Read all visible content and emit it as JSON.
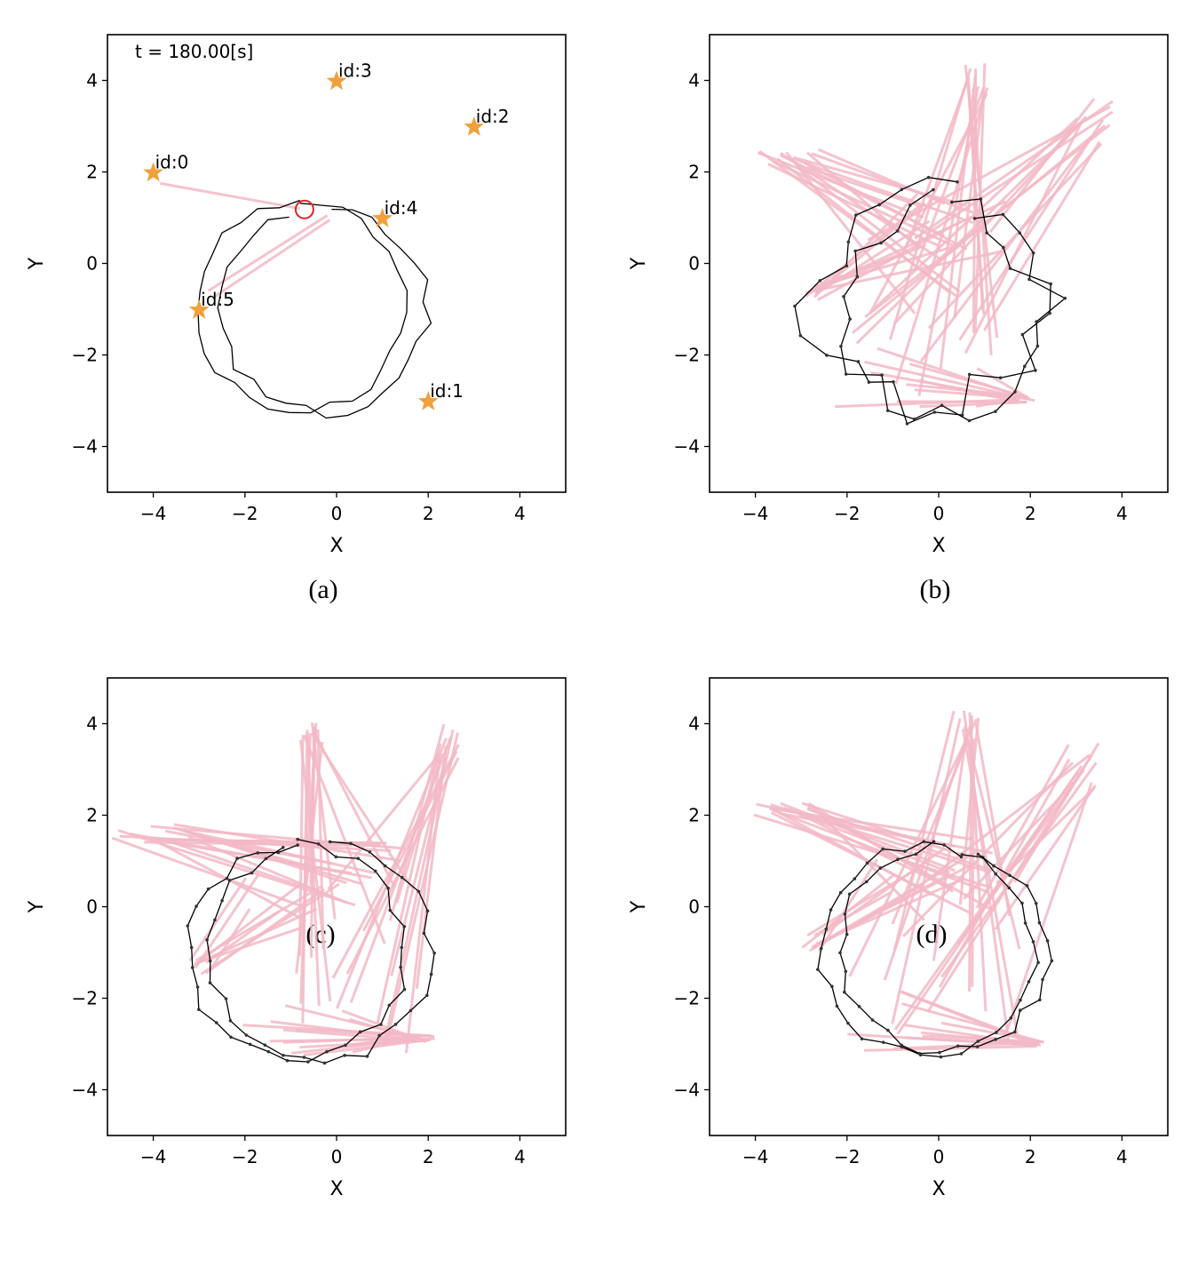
{
  "captions": [
    "(a)",
    "(b)",
    "(c)",
    "(d)"
  ],
  "chart_data": [
    {
      "type": "scatter",
      "panel": "(a)",
      "xlabel": "X",
      "ylabel": "Y",
      "xlim": [
        -5,
        5
      ],
      "ylim": [
        -5,
        5
      ],
      "xticks": [
        -4,
        -2,
        0,
        2,
        4
      ],
      "yticks": [
        -4,
        -2,
        0,
        2,
        4
      ],
      "grid": false,
      "time_text": "t = 180.00[s]",
      "colors": {
        "landmark": "#f0a13c",
        "trajectory": "#000000",
        "observation": "#f2b8c6",
        "robot": "#d62728"
      },
      "landmarks": [
        {
          "id": "id:0",
          "x": -4,
          "y": 2
        },
        {
          "id": "id:1",
          "x": 2,
          "y": -3
        },
        {
          "id": "id:2",
          "x": 3,
          "y": 3
        },
        {
          "id": "id:3",
          "x": 0,
          "y": 4
        },
        {
          "id": "id:4",
          "x": 1,
          "y": 1
        },
        {
          "id": "id:5",
          "x": -3,
          "y": -1
        }
      ],
      "robot": {
        "x": -0.7,
        "y": 1.18
      },
      "trajectories": [
        {
          "cx": -0.8,
          "cy": -0.95,
          "r": 2.28,
          "start_angle": 90,
          "sweep": 360,
          "points": 32,
          "wobble": 0.05,
          "dots": false
        },
        {
          "cx": -0.3,
          "cy": -1.0,
          "r": 2.25,
          "start_angle": 110,
          "sweep": 335,
          "points": 30,
          "wobble": 0.06,
          "dots": false
        }
      ],
      "observations": [
        {
          "x1": -3.85,
          "y1": 1.75,
          "x2": -0.8,
          "y2": 1.2
        },
        {
          "x1": -2.8,
          "y1": -0.6,
          "x2": -0.2,
          "y2": 1.05
        },
        {
          "x1": -2.7,
          "y1": -0.75,
          "x2": -0.15,
          "y2": 0.95
        }
      ]
    },
    {
      "type": "scatter",
      "panel": "(b)",
      "xlabel": "X",
      "ylabel": "Y",
      "xlim": [
        -5,
        5
      ],
      "ylim": [
        -5,
        5
      ],
      "xticks": [
        -4,
        -2,
        0,
        2,
        4
      ],
      "yticks": [
        -4,
        -2,
        0,
        2,
        4
      ],
      "grid": false,
      "colors": {
        "trajectory": "#000000",
        "observation": "#f2b8c6"
      },
      "trajectories": [
        {
          "cx": -0.3,
          "cy": -0.85,
          "r": 2.35,
          "start_angle": 75,
          "sweep": 360,
          "points": 28,
          "wobble": 0.22,
          "dots": true
        },
        {
          "cx": 0.1,
          "cy": -0.9,
          "r": 2.3,
          "start_angle": 95,
          "sweep": 335,
          "points": 26,
          "wobble": 0.2,
          "dots": true
        }
      ],
      "observation_bundles": [
        {
          "count": 16,
          "x_range": [
            -4.0,
            -2.5
          ],
          "y_range": [
            2.1,
            2.5
          ],
          "pair_x_range": [
            -0.6,
            0.9
          ],
          "pair_y_range": [
            -1.2,
            1.4
          ]
        },
        {
          "count": 14,
          "x_range": [
            0.5,
            1.2
          ],
          "y_range": [
            3.5,
            4.4
          ],
          "pair_x_range": [
            -2.5,
            1.5
          ],
          "pair_y_range": [
            -3.0,
            0.5
          ]
        },
        {
          "count": 14,
          "x_range": [
            3.0,
            3.8
          ],
          "y_range": [
            2.4,
            3.7
          ],
          "pair_x_range": [
            -2.0,
            1.6
          ],
          "pair_y_range": [
            -3.0,
            0.8
          ]
        },
        {
          "count": 12,
          "x_range": [
            1.7,
            2.1
          ],
          "y_range": [
            -3.05,
            -2.9
          ],
          "pair_x_range": [
            -2.5,
            1.0
          ],
          "pair_y_range": [
            -3.2,
            -1.8
          ]
        },
        {
          "count": 10,
          "x_range": [
            -3.0,
            -2.6
          ],
          "y_range": [
            -0.8,
            -0.5
          ],
          "pair_x_range": [
            -2.0,
            1.5
          ],
          "pair_y_range": [
            0.2,
            1.6
          ]
        }
      ]
    },
    {
      "type": "scatter",
      "panel": "(c)",
      "xlabel": "X",
      "ylabel": "Y",
      "xlim": [
        -5,
        5
      ],
      "ylim": [
        -5,
        5
      ],
      "xticks": [
        -4,
        -2,
        0,
        2,
        4
      ],
      "yticks": [
        -4,
        -2,
        0,
        2,
        4
      ],
      "grid": false,
      "colors": {
        "trajectory": "#000000",
        "observation": "#f2b8c6"
      },
      "trajectories": [
        {
          "cx": -0.85,
          "cy": -1.0,
          "r": 2.35,
          "start_angle": 90,
          "sweep": 360,
          "points": 34,
          "wobble": 0.06,
          "dots": true
        },
        {
          "cx": -0.35,
          "cy": -0.95,
          "r": 2.4,
          "start_angle": 110,
          "sweep": 335,
          "points": 32,
          "wobble": 0.06,
          "dots": true
        }
      ],
      "observation_bundles": [
        {
          "count": 18,
          "x_range": [
            -4.9,
            -3.2
          ],
          "y_range": [
            1.4,
            1.8
          ],
          "pair_x_range": [
            -0.8,
            1.5
          ],
          "pair_y_range": [
            -0.5,
            1.4
          ]
        },
        {
          "count": 14,
          "x_range": [
            -0.8,
            -0.3
          ],
          "y_range": [
            3.6,
            4.1
          ],
          "pair_x_range": [
            -1.0,
            1.8
          ],
          "pair_y_range": [
            -3.2,
            0.5
          ]
        },
        {
          "count": 14,
          "x_range": [
            2.2,
            2.7
          ],
          "y_range": [
            3.2,
            4.0
          ],
          "pair_x_range": [
            -0.5,
            1.8
          ],
          "pair_y_range": [
            -3.2,
            0.6
          ]
        },
        {
          "count": 14,
          "x_range": [
            1.6,
            2.2
          ],
          "y_range": [
            -2.95,
            -2.8
          ],
          "pair_x_range": [
            -2.5,
            0.5
          ],
          "pair_y_range": [
            -3.3,
            -2.1
          ]
        },
        {
          "count": 10,
          "x_range": [
            -3.2,
            -2.7
          ],
          "y_range": [
            -1.5,
            -1.1
          ],
          "pair_x_range": [
            -2.0,
            0.2
          ],
          "pair_y_range": [
            -0.5,
            0.8
          ]
        }
      ]
    },
    {
      "type": "scatter",
      "panel": "(d)",
      "xlabel": "X",
      "ylabel": "Y",
      "xlim": [
        -5,
        5
      ],
      "ylim": [
        -5,
        5
      ],
      "xticks": [
        -4,
        -2,
        0,
        2,
        4
      ],
      "yticks": [
        -4,
        -2,
        0,
        2,
        4
      ],
      "grid": false,
      "colors": {
        "trajectory": "#000000",
        "observation": "#f2b8c6"
      },
      "trajectories": [
        {
          "cx": -0.25,
          "cy": -0.95,
          "r": 2.3,
          "start_angle": 70,
          "sweep": 360,
          "points": 34,
          "wobble": 0.06,
          "dots": true
        },
        {
          "cx": 0.1,
          "cy": -0.95,
          "r": 2.25,
          "start_angle": 95,
          "sweep": 335,
          "points": 32,
          "wobble": 0.06,
          "dots": true
        }
      ],
      "observation_bundles": [
        {
          "count": 16,
          "x_range": [
            -4.1,
            -2.6
          ],
          "y_range": [
            2.0,
            2.3
          ],
          "pair_x_range": [
            -0.5,
            1.2
          ],
          "pair_y_range": [
            -0.3,
            1.5
          ]
        },
        {
          "count": 14,
          "x_range": [
            0.3,
            0.9
          ],
          "y_range": [
            3.6,
            4.3
          ],
          "pair_x_range": [
            -2.0,
            1.8
          ],
          "pair_y_range": [
            -3.0,
            0.5
          ]
        },
        {
          "count": 14,
          "x_range": [
            2.8,
            3.6
          ],
          "y_range": [
            2.6,
            3.6
          ],
          "pair_x_range": [
            -1.5,
            1.8
          ],
          "pair_y_range": [
            -3.0,
            0.8
          ]
        },
        {
          "count": 12,
          "x_range": [
            2.0,
            2.3
          ],
          "y_range": [
            -3.05,
            -2.95
          ],
          "pair_x_range": [
            -2.4,
            0.8
          ],
          "pair_y_range": [
            -3.2,
            -1.8
          ]
        },
        {
          "count": 10,
          "x_range": [
            -3.0,
            -2.5
          ],
          "y_range": [
            -1.0,
            -0.6
          ],
          "pair_x_range": [
            -1.5,
            1.2
          ],
          "pair_y_range": [
            0.2,
            1.4
          ]
        }
      ]
    }
  ]
}
